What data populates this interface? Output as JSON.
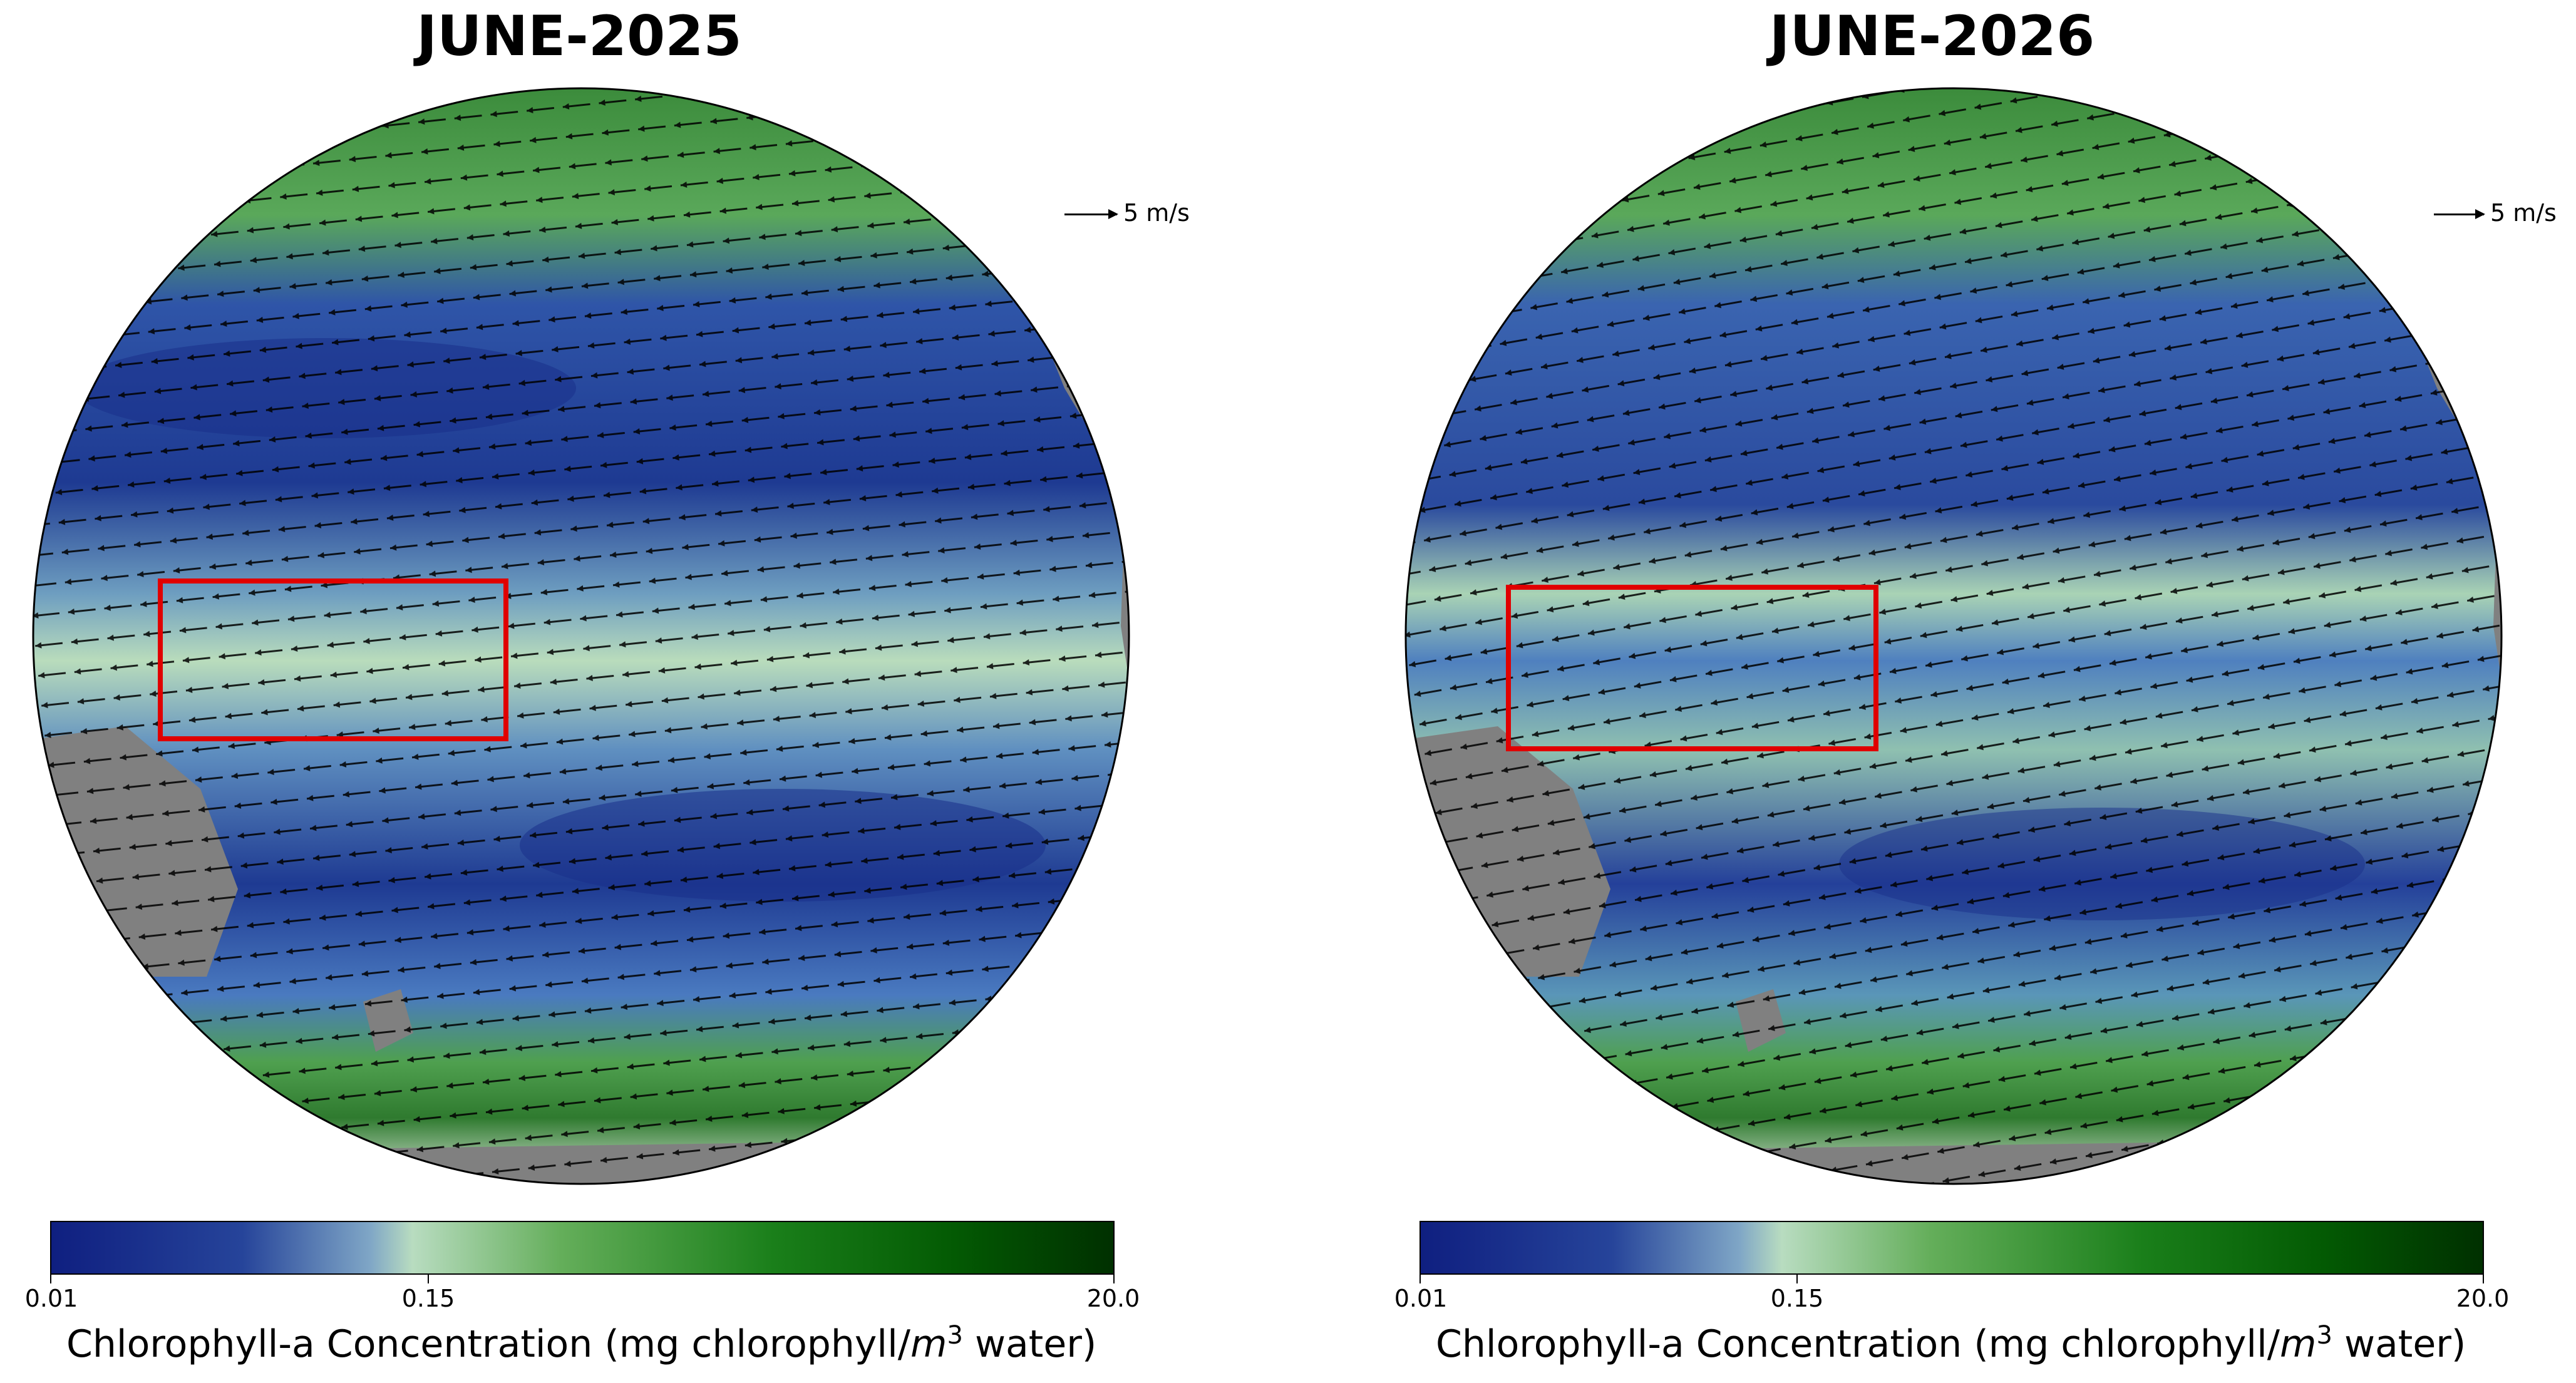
{
  "panels": [
    {
      "title": "JUNE-2025",
      "reference_arrow": "5 m/s",
      "colorbar": {
        "ticks": [
          "0.01",
          "0.15",
          "20.0"
        ],
        "label_prefix": "Chlorophyll-a Concentration (mg chlorophyll/",
        "label_var": "m",
        "label_sup": "3",
        "label_suffix": " water)"
      }
    },
    {
      "title": "JUNE-2026",
      "reference_arrow": "5 m/s",
      "colorbar": {
        "ticks": [
          "0.01",
          "0.15",
          "20.0"
        ],
        "label_prefix": "Chlorophyll-a Concentration (mg chlorophyll/",
        "label_var": "m",
        "label_sup": "3",
        "label_suffix": " water)"
      }
    }
  ],
  "colors": {
    "land": "#808080",
    "ocean_low": "#1a2f8a",
    "ocean_mid": "#b8dcc0",
    "ocean_high": "#0a5a0a",
    "box": "#e00000",
    "arrows": "#000000"
  }
}
